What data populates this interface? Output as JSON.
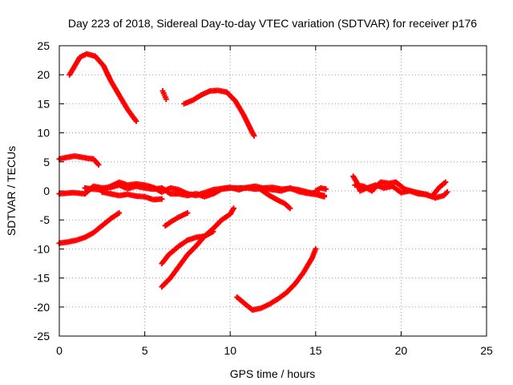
{
  "chart_data": {
    "type": "scatter",
    "title": "Day 223 of 2018, Sidereal Day-to-day VTEC variation (SDTVAR) for receiver p176",
    "xlabel": "GPS time / hours",
    "ylabel": "SDTVAR / TECUs",
    "xlim": [
      0,
      25
    ],
    "ylim": [
      -25,
      25
    ],
    "xticks": [
      0,
      5,
      10,
      15,
      20,
      25
    ],
    "yticks": [
      -25,
      -20,
      -15,
      -10,
      -5,
      0,
      5,
      10,
      15,
      20,
      25
    ],
    "grid": true,
    "marker": "+",
    "color": "#ff0000",
    "series": [
      {
        "name": "arc-top-left",
        "points": [
          [
            0.6,
            20
          ],
          [
            0.9,
            21.5
          ],
          [
            1.2,
            23
          ],
          [
            1.6,
            23.6
          ],
          [
            2.1,
            23.2
          ],
          [
            2.6,
            21.5
          ],
          [
            3.0,
            19
          ],
          [
            3.5,
            16.5
          ],
          [
            4.0,
            14
          ],
          [
            4.5,
            12
          ]
        ]
      },
      {
        "name": "arc-top-mid-short",
        "points": [
          [
            6.05,
            17.2
          ],
          [
            6.15,
            16.5
          ],
          [
            6.25,
            15.8
          ]
        ]
      },
      {
        "name": "arc-top-mid",
        "points": [
          [
            7.3,
            15
          ],
          [
            7.8,
            15.6
          ],
          [
            8.3,
            16.5
          ],
          [
            8.8,
            17.2
          ],
          [
            9.3,
            17.3
          ],
          [
            9.8,
            17.0
          ],
          [
            10.3,
            15.5
          ],
          [
            10.8,
            13
          ],
          [
            11.3,
            10
          ],
          [
            11.4,
            9.5
          ]
        ]
      },
      {
        "name": "arc-upper-left",
        "points": [
          [
            0,
            5.5
          ],
          [
            0.5,
            5.8
          ],
          [
            0.9,
            6.0
          ],
          [
            1.3,
            5.8
          ],
          [
            1.7,
            5.6
          ],
          [
            2.0,
            5.5
          ],
          [
            2.3,
            4.5
          ]
        ]
      },
      {
        "name": "zero-band-a",
        "points": [
          [
            0,
            -0.5
          ],
          [
            0.8,
            -0.3
          ],
          [
            1.5,
            -0.5
          ],
          [
            2.0,
            0.8
          ],
          [
            2.5,
            0.5
          ],
          [
            3.0,
            0.6
          ],
          [
            3.5,
            1.0
          ],
          [
            4.0,
            0.4
          ],
          [
            4.5,
            0.8
          ],
          [
            5.0,
            0.5
          ],
          [
            5.5,
            0.3
          ],
          [
            6.0,
            0.5
          ],
          [
            6.5,
            -0.5
          ],
          [
            7.0,
            -0.5
          ],
          [
            7.5,
            -0.8
          ],
          [
            8.0,
            -0.5
          ],
          [
            8.5,
            -1.0
          ],
          [
            9.0,
            -0.5
          ],
          [
            9.5,
            0.3
          ],
          [
            10.0,
            0.5
          ],
          [
            10.5,
            0.5
          ],
          [
            11.0,
            0.5
          ],
          [
            11.5,
            0.3
          ],
          [
            12.0,
            0.5
          ],
          [
            12.5,
            0.6
          ],
          [
            13.0,
            0.3
          ],
          [
            13.5,
            0.4
          ],
          [
            14.0,
            0.2
          ],
          [
            14.5,
            -0.2
          ],
          [
            15.0,
            -0.5
          ],
          [
            15.5,
            -0.8
          ]
        ]
      },
      {
        "name": "zero-band-b",
        "points": [
          [
            1.5,
            0.5
          ],
          [
            2.0,
            0.3
          ],
          [
            2.5,
            0.2
          ],
          [
            3.0,
            0.8
          ],
          [
            3.5,
            1.5
          ],
          [
            4.0,
            1.0
          ],
          [
            4.5,
            1.2
          ],
          [
            5.0,
            1.0
          ],
          [
            5.5,
            0.6
          ],
          [
            6.0,
            -0.2
          ],
          [
            6.5,
            0.5
          ],
          [
            7.0,
            0.2
          ],
          [
            7.5,
            -0.5
          ],
          [
            8.0,
            -0.8
          ],
          [
            8.5,
            -0.3
          ],
          [
            9.0,
            0.2
          ],
          [
            9.5,
            0.4
          ],
          [
            10.0,
            0.6
          ],
          [
            10.5,
            0.2
          ],
          [
            11.0,
            0.6
          ],
          [
            11.5,
            0.8
          ],
          [
            12.0,
            0.4
          ],
          [
            12.5,
            0.2
          ],
          [
            13.0,
            0.0
          ],
          [
            13.5,
            0.5
          ],
          [
            14.0,
            -0.1
          ],
          [
            14.5,
            -0.4
          ],
          [
            15.0,
            -0.6
          ],
          [
            15.5,
            -1.0
          ]
        ]
      },
      {
        "name": "zero-band-c",
        "points": [
          [
            2.5,
            -0.2
          ],
          [
            3.0,
            -0.5
          ],
          [
            3.5,
            -0.8
          ],
          [
            4.0,
            -0.6
          ],
          [
            4.5,
            -0.9
          ],
          [
            5.0,
            -1.0
          ],
          [
            5.5,
            -1.5
          ],
          [
            6.0,
            -1.4
          ]
        ]
      },
      {
        "name": "zero-band-short-dip",
        "points": [
          [
            11.8,
            0.2
          ],
          [
            12.3,
            -0.8
          ],
          [
            12.8,
            -1.6
          ],
          [
            13.2,
            -2.2
          ],
          [
            13.5,
            -3.0
          ]
        ]
      },
      {
        "name": "zero-band-end",
        "points": [
          [
            15.0,
            0.0
          ],
          [
            15.3,
            0.5
          ],
          [
            15.6,
            0.3
          ]
        ]
      },
      {
        "name": "zero-band-right-a",
        "points": [
          [
            17.2,
            2.5
          ],
          [
            17.4,
            1.5
          ],
          [
            17.6,
            0.0
          ],
          [
            18.0,
            0.5
          ],
          [
            18.5,
            1.0
          ],
          [
            19.0,
            0.5
          ],
          [
            19.5,
            0.8
          ],
          [
            20.0,
            -0.3
          ],
          [
            20.5,
            0.0
          ],
          [
            21.0,
            -0.5
          ],
          [
            21.5,
            -0.6
          ],
          [
            22.0,
            -1.2
          ],
          [
            22.5,
            -0.8
          ],
          [
            22.7,
            -0.2
          ]
        ]
      },
      {
        "name": "zero-band-right-b",
        "points": [
          [
            17.3,
            1.0
          ],
          [
            17.8,
            0.8
          ],
          [
            18.3,
            0.0
          ],
          [
            18.8,
            1.5
          ],
          [
            19.3,
            1.3
          ],
          [
            19.7,
            1.5
          ],
          [
            20.2,
            0.3
          ],
          [
            20.8,
            -0.2
          ],
          [
            21.3,
            -0.5
          ],
          [
            21.8,
            -1.0
          ],
          [
            22.2,
            0.5
          ],
          [
            22.6,
            1.5
          ]
        ]
      },
      {
        "name": "arc-lower-left",
        "points": [
          [
            0,
            -9
          ],
          [
            0.5,
            -8.8
          ],
          [
            1.0,
            -8.5
          ],
          [
            1.5,
            -8.0
          ],
          [
            2.0,
            -7.2
          ],
          [
            2.5,
            -6.0
          ],
          [
            3.0,
            -4.8
          ],
          [
            3.5,
            -3.8
          ]
        ]
      },
      {
        "name": "arc-lower-mid-a",
        "points": [
          [
            6.2,
            -6
          ],
          [
            6.6,
            -5.2
          ],
          [
            7.0,
            -4.5
          ],
          [
            7.5,
            -3.8
          ]
        ]
      },
      {
        "name": "arc-lower-mid-b",
        "points": [
          [
            6.0,
            -12.5
          ],
          [
            6.4,
            -11
          ],
          [
            7.0,
            -9.5
          ],
          [
            7.5,
            -8.5
          ],
          [
            8.0,
            -8.0
          ],
          [
            8.5,
            -7.8
          ],
          [
            9.0,
            -6.5
          ],
          [
            9.5,
            -5.0
          ],
          [
            10.0,
            -4.0
          ],
          [
            10.2,
            -3.0
          ]
        ]
      },
      {
        "name": "arc-lower-mid-c",
        "points": [
          [
            6.0,
            -16.5
          ],
          [
            6.5,
            -15
          ],
          [
            7.0,
            -13
          ],
          [
            7.5,
            -11
          ],
          [
            8.0,
            -9.5
          ],
          [
            8.5,
            -7.8
          ],
          [
            9.0,
            -7.0
          ]
        ]
      },
      {
        "name": "arc-bottom",
        "points": [
          [
            10.4,
            -18.3
          ],
          [
            10.8,
            -19.3
          ],
          [
            11.3,
            -20.5
          ],
          [
            11.8,
            -20.2
          ],
          [
            12.3,
            -19.5
          ],
          [
            12.8,
            -18.6
          ],
          [
            13.3,
            -17.5
          ],
          [
            13.8,
            -16.0
          ],
          [
            14.3,
            -14.0
          ],
          [
            14.8,
            -11.5
          ],
          [
            15.0,
            -10.0
          ]
        ]
      }
    ]
  }
}
